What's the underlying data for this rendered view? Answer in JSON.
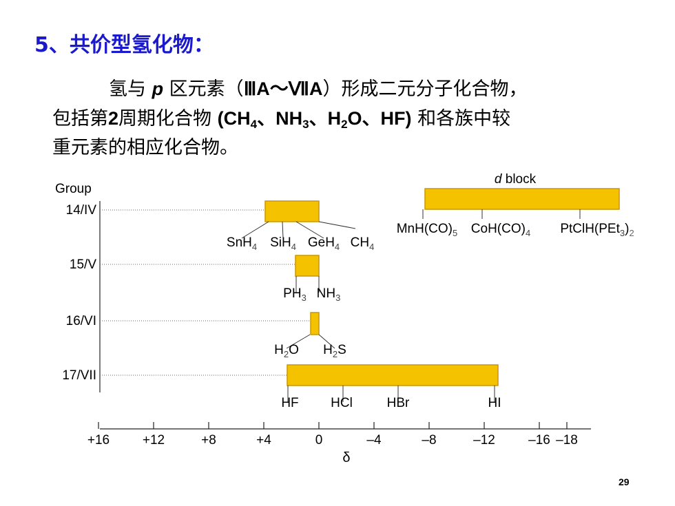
{
  "slide": {
    "title": "5、共价型氢化物：",
    "paragraph": {
      "line1_pre": "氢与 ",
      "line1_p": "p",
      "line1_post": " 区元素（",
      "group_start": "ⅢA～ⅦA",
      "line1_end": "）形成二元分子化合物，",
      "line2_pre": "包括第",
      "period": "2",
      "line2_mid": "周期化合物 ",
      "compounds": [
        {
          "base": "(CH",
          "sub": "4"
        },
        {
          "sep": "、",
          "base": "NH",
          "sub": "3"
        },
        {
          "sep": "、",
          "base": "H",
          "sub": "2",
          "tail": "O"
        },
        {
          "sep": "、",
          "base": "HF)"
        }
      ],
      "line2_end": " 和各族中较",
      "line3": "重元素的相应化合物。"
    },
    "page_number": "29"
  },
  "chart_data": {
    "type": "range-bar",
    "axis_title_y": "Group",
    "xlabel": "δ",
    "x_ticks": [
      "+16",
      "+12",
      "+8",
      "+4",
      "0",
      "–4",
      "–8",
      "–12",
      "–16",
      "–18"
    ],
    "x_tick_values": [
      16,
      12,
      8,
      4,
      0,
      -4,
      -8,
      -12,
      -16,
      -18
    ],
    "xlim": [
      16,
      -18
    ],
    "groups": [
      {
        "label": "14/IV",
        "range": [
          3.9,
          0
        ],
        "compounds": [
          {
            "formula": "SnH",
            "sub": "4",
            "delta": 3.0
          },
          {
            "formula": "SiH",
            "sub": "4",
            "delta": 2.5
          },
          {
            "formula": "GeH",
            "sub": "4",
            "delta": 1.5
          },
          {
            "formula": "CH",
            "sub": "4",
            "delta": 0.2
          }
        ]
      },
      {
        "label": "15/V",
        "range": [
          1.7,
          0
        ],
        "compounds": [
          {
            "formula": "PH",
            "sub": "3",
            "delta": 1.6
          },
          {
            "formula": "NH",
            "sub": "3",
            "delta": 0.1
          }
        ]
      },
      {
        "label": "16/VI",
        "range": [
          0.6,
          0
        ],
        "compounds": [
          {
            "formula": "H",
            "sub": "2",
            "tail": "O",
            "delta": 0.6
          },
          {
            "formula": "H",
            "sub": "2",
            "tail": "S",
            "delta": 0
          }
        ]
      },
      {
        "label": "17/VII",
        "range": [
          2.3,
          -13
        ],
        "compounds": [
          {
            "formula": "HF",
            "delta": 1.8
          },
          {
            "formula": "HCl",
            "delta": -1.8
          },
          {
            "formula": "HBr",
            "delta": -6
          },
          {
            "formula": "HI",
            "delta": -13
          }
        ]
      }
    ],
    "d_block": {
      "label_italic": "d",
      "label": " block",
      "range": [
        -7.7,
        -21.8
      ],
      "compounds": [
        {
          "formula": "MnH(CO)",
          "sub": "5",
          "delta": -7.7
        },
        {
          "formula": "CoH(CO)",
          "sub": "4",
          "delta": -12
        },
        {
          "formula": "PtClH(PEt",
          "sub": "3",
          "tail": ")",
          "sub2": "2",
          "delta": -19.2
        }
      ]
    },
    "bar_color": "#f5c200",
    "bar_edge_color": "#c8960a"
  }
}
